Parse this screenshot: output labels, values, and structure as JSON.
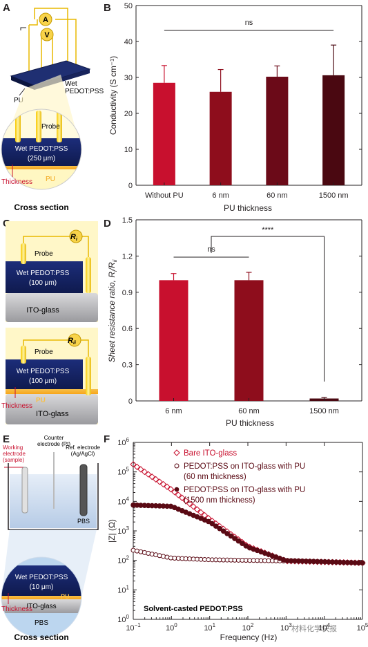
{
  "panel_labels": {
    "a": "A",
    "b": "B",
    "c": "C",
    "d": "D",
    "e": "E",
    "f": "F"
  },
  "colors": {
    "red": "#c8102e",
    "dark1": "#8e0d1c",
    "dark2": "#6b0a18",
    "dark3": "#4a0811",
    "marker": "#b22234",
    "maroon": "#5a0a14"
  },
  "schematic_a": {
    "ammeter": "A",
    "voltmeter": "V",
    "wet_label": "Wet\nPEDOT:PSS",
    "pu": "PU",
    "probe": "Probe",
    "layer": "Wet PEDOT:PSS",
    "layer_thickness": "(250 μm)",
    "pu_inner": "PU",
    "thickness": "Thickness",
    "caption": "Cross section"
  },
  "schematic_c": {
    "resistor_i": "R",
    "resistor_i_sub": "i",
    "resistor_ii": "R",
    "resistor_ii_sub": "ii",
    "probe": "Probe",
    "layer": "Wet PEDOT:PSS",
    "layer_thickness": "(100 μm)",
    "substrate": "ITO-glass",
    "pu": "PU",
    "thickness": "Thickness"
  },
  "schematic_e": {
    "working": "Working\nelectrode\n(sample)",
    "counter": "Counter\nelectrode (Pt)",
    "reference": "Ref. electrode\n(Ag/AgCl)",
    "pbs": "PBS",
    "layer": "Wet PEDOT:PSS",
    "layer_thickness": "(10 μm)",
    "pu": "PU",
    "substrate": "ITO-glass",
    "thickness": "Thickness",
    "pbs_inner": "PBS",
    "caption": "Cross section"
  },
  "chart_data": [
    {
      "panel": "B",
      "type": "bar",
      "categories": [
        "Without PU",
        "6 nm",
        "60 nm",
        "1500 nm"
      ],
      "values": [
        28.5,
        26,
        30.2,
        30.6
      ],
      "errors": [
        4.8,
        6.2,
        3,
        8.4
      ],
      "xlabel": "PU thickness",
      "ylabel": "Conductivity (S cm⁻¹)",
      "ylim": [
        0,
        50
      ],
      "yticks": [
        0,
        10,
        20,
        30,
        40,
        50
      ],
      "annotations": [
        {
          "text": "ns",
          "from": 0,
          "to": 3
        }
      ]
    },
    {
      "panel": "D",
      "type": "bar",
      "categories": [
        "6 nm",
        "60 nm",
        "1500 nm"
      ],
      "values": [
        1.0,
        1.0,
        0.02
      ],
      "errors": [
        0.055,
        0.065,
        0.008
      ],
      "xlabel": "PU thickness",
      "ylabel": "Sheet resistance ratio, R",
      "ylabel_sub": "i",
      "ylabel_sep": "/R",
      "ylabel_sub2": "ii",
      "ylim": [
        0,
        1.5
      ],
      "yticks": [
        "0",
        "0.3",
        "0.6",
        "0.9",
        "1.2",
        "1.5"
      ],
      "annotations": [
        {
          "text": "ns",
          "from": 0,
          "to": 1
        },
        {
          "text": "****",
          "from": 0.5,
          "to": 2
        }
      ]
    },
    {
      "panel": "F",
      "type": "scatter",
      "xscale": "log",
      "yscale": "log",
      "xlim": [
        0.1,
        100000
      ],
      "ylim": [
        1,
        1000000
      ],
      "xticks": [
        "10",
        "10",
        "10",
        "10",
        "10",
        "10",
        "10"
      ],
      "xtick_exp": [
        "−1",
        "0",
        "1",
        "2",
        "3",
        "4",
        "5"
      ],
      "yticks": [
        "10",
        "10",
        "10",
        "10",
        "10",
        "10",
        "10"
      ],
      "ytick_exp": [
        "0",
        "1",
        "2",
        "3",
        "4",
        "5",
        "6"
      ],
      "xlabel": "Frequency (Hz)",
      "ylabel": "|Z| (Ω)",
      "annotation": "Solvent-casted PEDOT:PSS",
      "series": [
        {
          "name": "Bare ITO-glass",
          "marker": "diamond-open",
          "color": "#c8102e",
          "x": [
            0.1,
            1,
            10,
            100,
            1000,
            100000
          ],
          "y": [
            180000,
            25000,
            2500,
            300,
            95,
            82
          ]
        },
        {
          "name": "PEDOT:PSS on ITO-glass with PU\n(60 nm thickness)",
          "marker": "circle-open",
          "color": "#5a0a14",
          "x": [
            0.1,
            1,
            10,
            100,
            1000,
            100000
          ],
          "y": [
            220,
            120,
            105,
            100,
            95,
            82
          ]
        },
        {
          "name": "PEDOT:PSS on ITO-glass with PU\n(1500 nm thickness)",
          "marker": "circle-filled",
          "color": "#5a0a14",
          "x": [
            0.1,
            1,
            10,
            100,
            1000,
            100000
          ],
          "y": [
            7500,
            6800,
            2000,
            280,
            98,
            82
          ]
        }
      ]
    }
  ],
  "watermark": "材料化学快报"
}
